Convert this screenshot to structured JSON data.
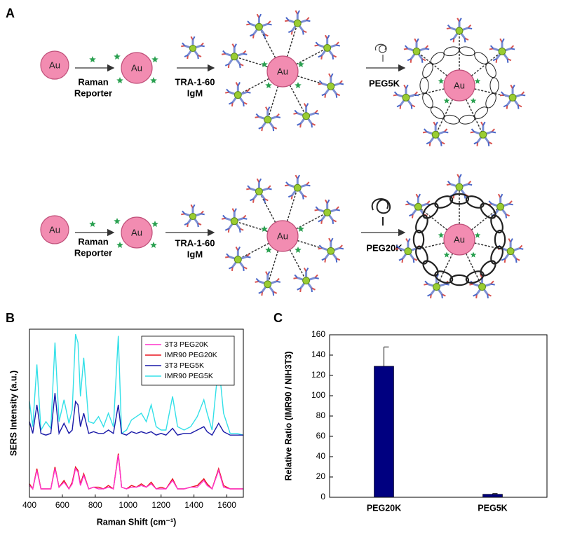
{
  "panel_a": {
    "label": "A",
    "rows": [
      {
        "au_labels": [
          "Au",
          "Au",
          "Au",
          "Au"
        ],
        "reporter_lines": [
          "Raman",
          "Reporter"
        ],
        "antibody_lines": [
          "TRA-1-60",
          "IgM"
        ],
        "peg": "PEG5K"
      },
      {
        "au_labels": [
          "Au",
          "Au",
          "Au",
          "Au"
        ],
        "reporter_lines": [
          "Raman",
          "Reporter"
        ],
        "antibody_lines": [
          "TRA-1-60",
          "IgM"
        ],
        "peg": "PEG20K"
      }
    ]
  },
  "chart_data": [
    {
      "type": "line",
      "label": "B",
      "xlabel": "Raman Shift (cm⁻¹)",
      "ylabel": "SERS Intensity (a.u.)",
      "x": [
        400,
        420,
        445,
        470,
        500,
        530,
        555,
        580,
        610,
        640,
        660,
        680,
        695,
        710,
        730,
        760,
        790,
        820,
        850,
        880,
        910,
        940,
        960,
        990,
        1020,
        1050,
        1080,
        1110,
        1140,
        1170,
        1200,
        1230,
        1270,
        1300,
        1340,
        1380,
        1420,
        1460,
        1480,
        1510,
        1550,
        1580,
        1620,
        1660,
        1700
      ],
      "xlim": [
        400,
        1700
      ],
      "xticks": [
        400,
        600,
        800,
        1000,
        1200,
        1400,
        1600
      ],
      "ylim": [
        0,
        100
      ],
      "legend": "upper right",
      "series": [
        {
          "name": "3T3 PEG20K",
          "color": "#ff33cc",
          "values": [
            7,
            5,
            16,
            5,
            5,
            5,
            17,
            6,
            9,
            5,
            8,
            17,
            15,
            7,
            13,
            5,
            6,
            5,
            5,
            6,
            5,
            25,
            6,
            5,
            6,
            6,
            7,
            6,
            8,
            5,
            5,
            5,
            10,
            5,
            5,
            6,
            6,
            10,
            7,
            5,
            16,
            6,
            5,
            5,
            5
          ]
        },
        {
          "name": "IMR90 PEG20K",
          "color": "#e8141e",
          "values": [
            8,
            5,
            17,
            5,
            5,
            5,
            18,
            6,
            10,
            5,
            9,
            18,
            16,
            8,
            14,
            5,
            6,
            6,
            5,
            7,
            5,
            26,
            6,
            5,
            7,
            6,
            8,
            6,
            9,
            5,
            6,
            5,
            11,
            5,
            5,
            6,
            7,
            11,
            8,
            5,
            17,
            7,
            5,
            5,
            5
          ]
        },
        {
          "name": "3T3 PEG5K",
          "color": "#1a1aa8",
          "values": [
            45,
            38,
            55,
            38,
            37,
            38,
            62,
            38,
            44,
            38,
            40,
            57,
            55,
            42,
            50,
            38,
            39,
            38,
            38,
            40,
            38,
            55,
            38,
            37,
            39,
            38,
            39,
            38,
            39,
            37,
            38,
            37,
            41,
            37,
            38,
            38,
            40,
            42,
            39,
            37,
            44,
            39,
            37,
            37,
            37
          ]
        },
        {
          "name": "IMR90 PEG5K",
          "color": "#33e0e8",
          "values": [
            57,
            42,
            79,
            40,
            45,
            41,
            92,
            45,
            58,
            44,
            52,
            97,
            92,
            60,
            83,
            45,
            44,
            48,
            42,
            50,
            42,
            96,
            38,
            40,
            46,
            48,
            50,
            45,
            55,
            42,
            40,
            40,
            60,
            42,
            40,
            42,
            48,
            58,
            50,
            40,
            80,
            50,
            38,
            38,
            37
          ]
        }
      ]
    },
    {
      "type": "bar",
      "label": "C",
      "ylabel": "Relative Ratio (IMR90 / NIH3T3)",
      "categories": [
        "PEG20K",
        "PEG5K"
      ],
      "values": [
        129,
        3
      ],
      "errors": [
        19,
        0.6
      ],
      "color": "#000080",
      "ylim": [
        0,
        160
      ],
      "yticks": [
        0,
        20,
        40,
        60,
        80,
        100,
        120,
        140,
        160
      ]
    }
  ]
}
